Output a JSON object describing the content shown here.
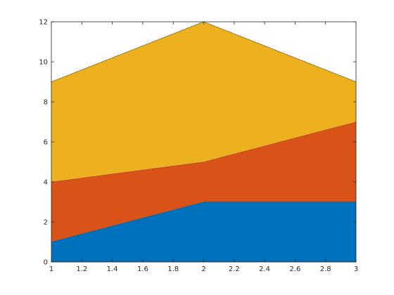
{
  "chart_data": {
    "type": "area",
    "stacked": true,
    "title": "",
    "xlabel": "",
    "ylabel": "",
    "x": [
      1,
      2,
      3
    ],
    "xlim": [
      1,
      3
    ],
    "ylim": [
      0,
      12
    ],
    "x_ticks": [
      "1",
      "1.2",
      "1.4",
      "1.6",
      "1.8",
      "2",
      "2.2",
      "2.4",
      "2.6",
      "2.8",
      "3"
    ],
    "y_ticks": [
      "0",
      "2",
      "4",
      "6",
      "8",
      "10",
      "12"
    ],
    "grid": false,
    "legend": "none",
    "series": [
      {
        "values": [
          1,
          3,
          3
        ],
        "color": "#0072BD"
      },
      {
        "values": [
          3,
          2,
          4
        ],
        "color": "#D95319"
      },
      {
        "values": [
          5,
          7,
          2
        ],
        "color": "#EDB120"
      }
    ]
  }
}
